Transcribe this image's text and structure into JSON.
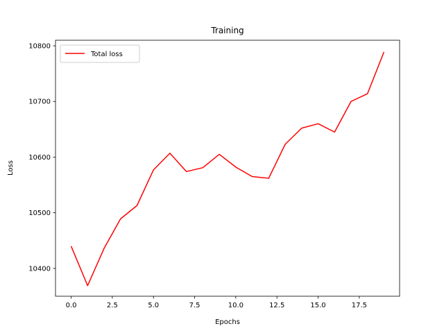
{
  "chart_data": {
    "type": "line",
    "title": "Training",
    "xlabel": "Epochs",
    "ylabel": "Loss",
    "xlim": [
      -0.95,
      19.95
    ],
    "ylim": [
      10350,
      10810
    ],
    "x_ticks": [
      0.0,
      2.5,
      5.0,
      7.5,
      10.0,
      12.5,
      15.0,
      17.5
    ],
    "x_tick_labels": [
      "0.0",
      "2.5",
      "5.0",
      "7.5",
      "10.0",
      "12.5",
      "15.0",
      "17.5"
    ],
    "y_ticks": [
      10400,
      10500,
      10600,
      10700,
      10800
    ],
    "y_tick_labels": [
      "10400",
      "10500",
      "10600",
      "10700",
      "10800"
    ],
    "grid": false,
    "legend_position": "top-left",
    "series": [
      {
        "name": "Total loss",
        "color": "#ff0000",
        "x": [
          0,
          1,
          2,
          3,
          4,
          5,
          6,
          7,
          8,
          9,
          10,
          11,
          12,
          13,
          14,
          15,
          16,
          17,
          18,
          19
        ],
        "y": [
          10440,
          10369,
          10436,
          10489,
          10513,
          10577,
          10607,
          10574,
          10581,
          10605,
          10582,
          10565,
          10562,
          10623,
          10652,
          10660,
          10645,
          10700,
          10714,
          10789
        ]
      }
    ]
  }
}
